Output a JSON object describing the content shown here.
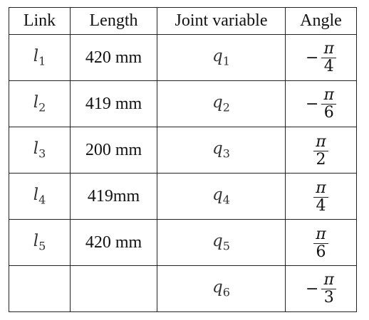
{
  "table": {
    "header": [
      "Link",
      "Length",
      "Joint variable",
      "Angle"
    ],
    "rows": [
      {
        "link": {
          "base": "l",
          "sub": "1"
        },
        "length": "420 mm",
        "joint": {
          "base": "q",
          "sub": "1"
        },
        "angle": {
          "sign": "−",
          "numerator": "π",
          "denominator": "4"
        }
      },
      {
        "link": {
          "base": "l",
          "sub": "2"
        },
        "length": "419 mm",
        "joint": {
          "base": "q",
          "sub": "2"
        },
        "angle": {
          "sign": "−",
          "numerator": "π",
          "denominator": "6"
        }
      },
      {
        "link": {
          "base": "l",
          "sub": "3"
        },
        "length": "200 mm",
        "joint": {
          "base": "q",
          "sub": "3"
        },
        "angle": {
          "numerator": "π",
          "denominator": "2"
        }
      },
      {
        "link": {
          "base": "l",
          "sub": "4"
        },
        "length": "419mm",
        "joint": {
          "base": "q",
          "sub": "4"
        },
        "angle": {
          "numerator": "π",
          "denominator": "4"
        }
      },
      {
        "link": {
          "base": "l",
          "sub": "5"
        },
        "length": "420 mm",
        "joint": {
          "base": "q",
          "sub": "5"
        },
        "angle": {
          "numerator": "π",
          "denominator": "6"
        }
      },
      {
        "joint": {
          "base": "q",
          "sub": "6"
        },
        "angle": {
          "sign": "−",
          "numerator": "π",
          "denominator": "3"
        }
      }
    ]
  }
}
